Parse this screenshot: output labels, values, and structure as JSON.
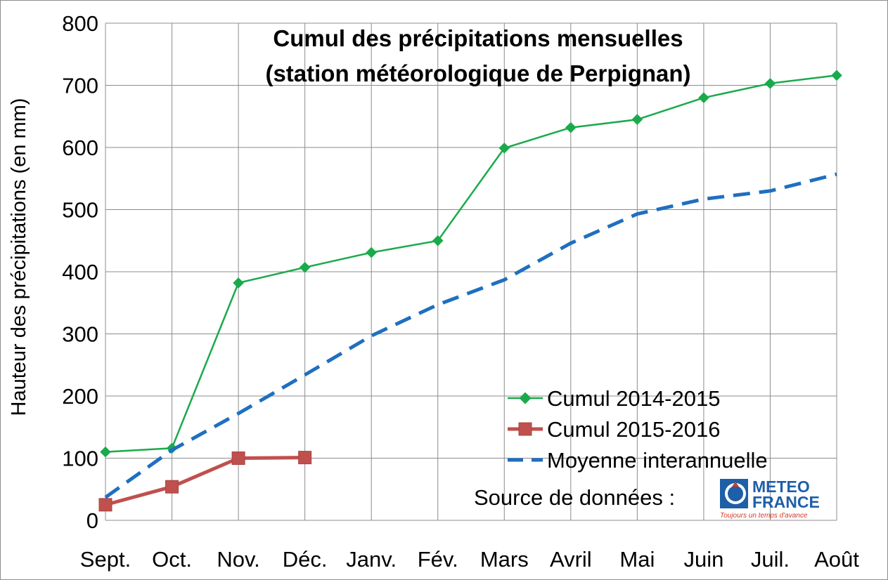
{
  "chart_data": {
    "type": "line",
    "title": [
      "Cumul des précipitations mensuelles",
      "(station météorologique de Perpignan)"
    ],
    "ylabel": "Hauteur des précipitations (en mm)",
    "xlabel": "",
    "categories": [
      "Sept.",
      "Oct.",
      "Nov.",
      "Déc.",
      "Janv.",
      "Fév.",
      "Mars",
      "Avril",
      "Mai",
      "Juin",
      "Juil.",
      "Août"
    ],
    "ylim": [
      0,
      800
    ],
    "yticks": [
      0,
      100,
      200,
      300,
      400,
      500,
      600,
      700,
      800
    ],
    "grid": true,
    "legend_position": "bottom-right",
    "series": [
      {
        "name": "Cumul 2014-2015",
        "color": "#1aaa4b",
        "style": "solid-diamond",
        "values": [
          110,
          116,
          382,
          407,
          431,
          450,
          599,
          632,
          645,
          680,
          703,
          716
        ]
      },
      {
        "name": "Cumul 2015-2016",
        "color": "#c0504d",
        "style": "thick-square",
        "values": [
          25,
          54,
          100,
          101,
          null,
          null,
          null,
          null,
          null,
          null,
          null,
          null
        ]
      },
      {
        "name": "Moyenne interannuelle",
        "color": "#1f6fc0",
        "style": "dashed",
        "values": [
          37,
          113,
          172,
          234,
          297,
          347,
          387,
          446,
          493,
          517,
          530,
          557
        ]
      }
    ],
    "source_label": "Source de données :",
    "logo": {
      "line1": "METEO",
      "line2": "FRANCE",
      "tagline": "Toujours un temps d'avance"
    }
  }
}
